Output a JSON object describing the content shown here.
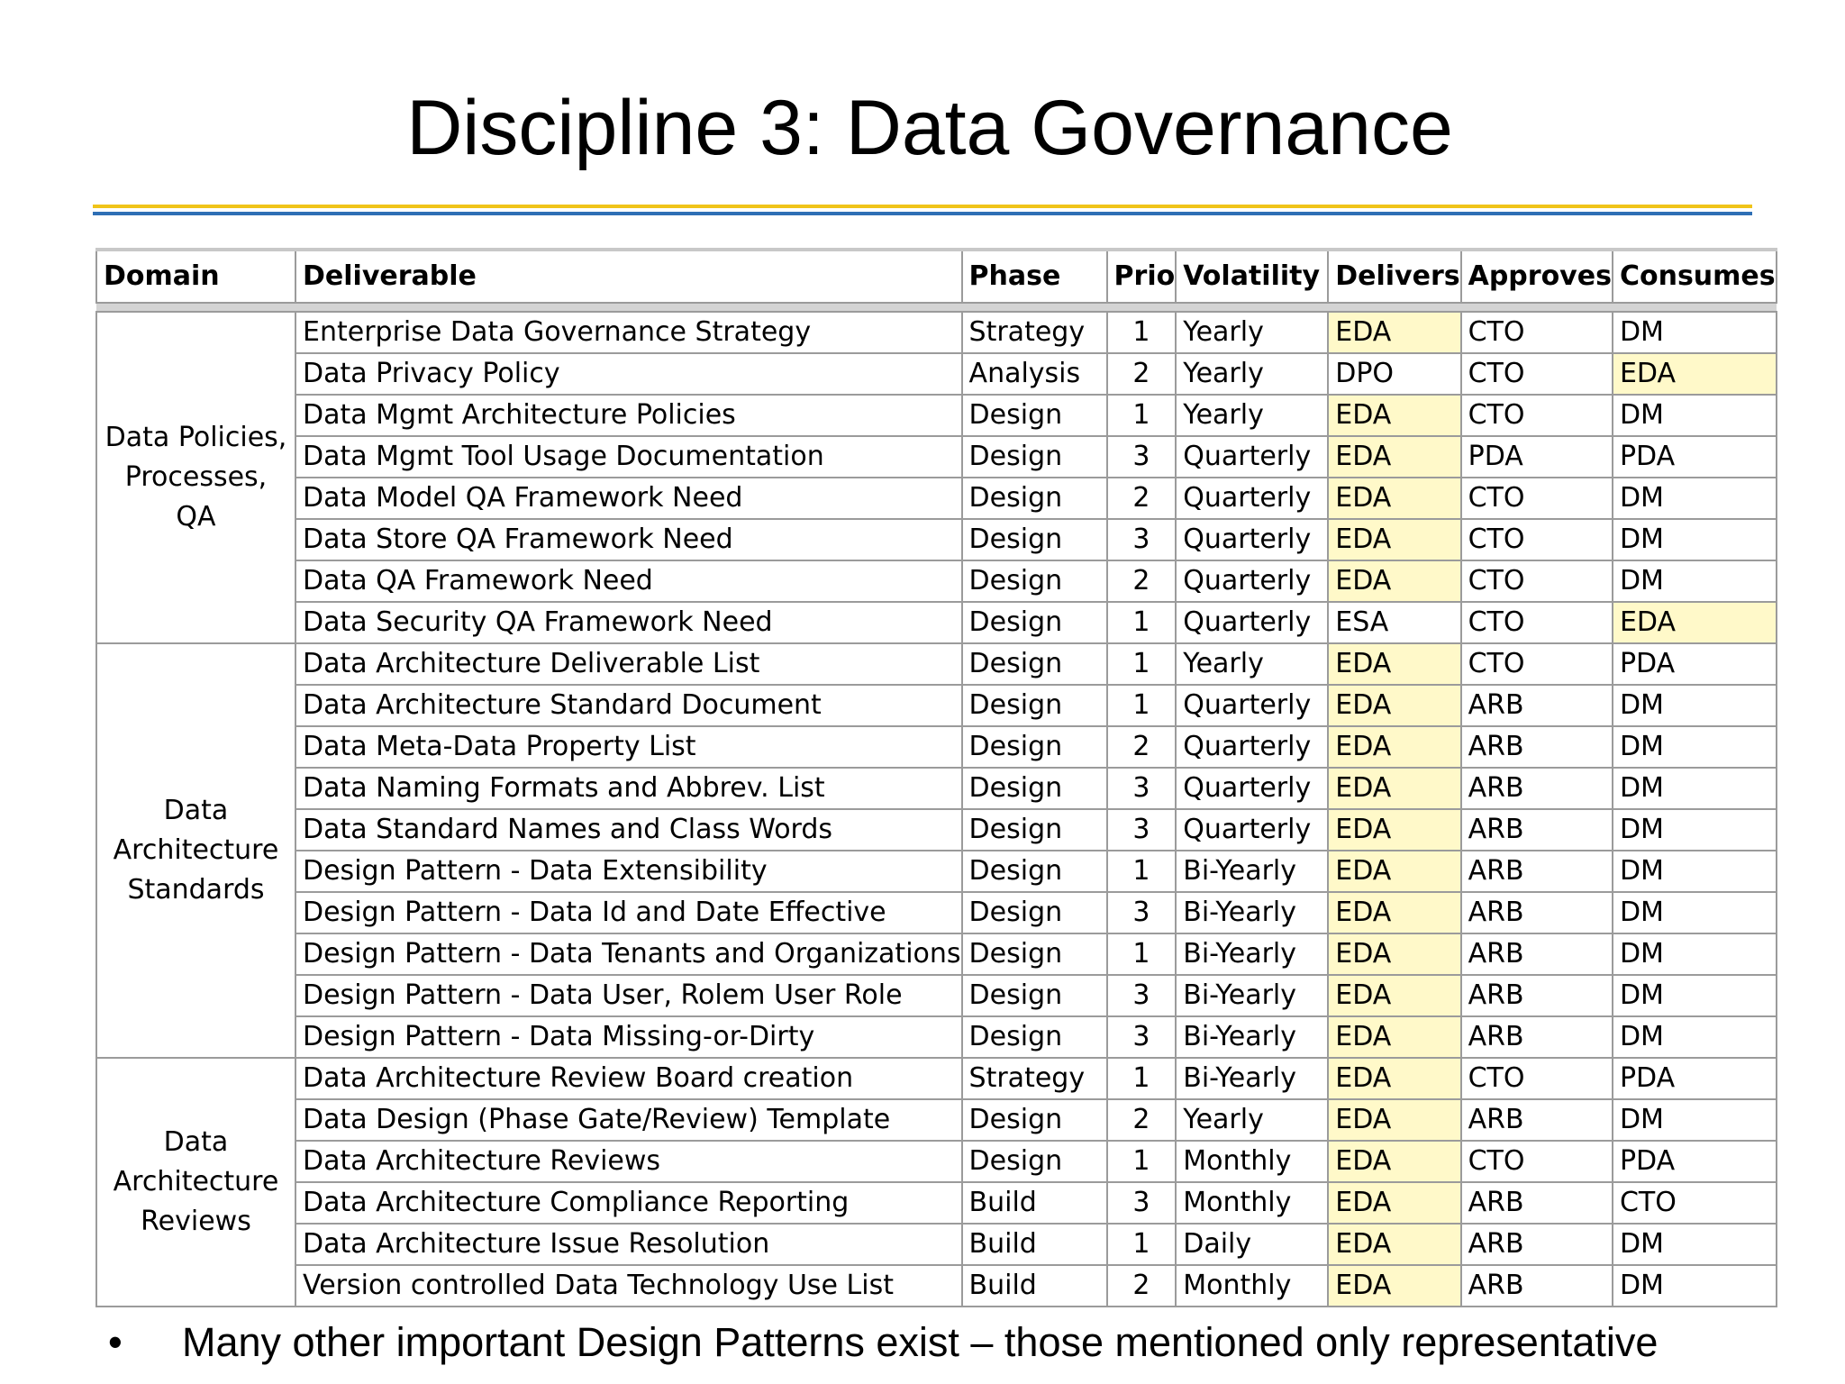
{
  "title": "Discipline 3: Data Governance",
  "colors": {
    "rule_top": "#f0c419",
    "rule_bottom": "#2e6fb5",
    "highlight": "#fff9c9"
  },
  "table": {
    "headers": [
      "Domain",
      "Deliverable",
      "Phase",
      "Prio",
      "Volatility",
      "Delivers",
      "Approves",
      "Consumes"
    ],
    "groups": [
      {
        "domain": "Data Policies, Processes, QA",
        "rows": [
          [
            "Enterprise Data Governance Strategy",
            "Strategy",
            "1",
            "Yearly",
            "EDA",
            "CTO",
            "DM"
          ],
          [
            "Data Privacy Policy",
            "Analysis",
            "2",
            "Yearly",
            "DPO",
            "CTO",
            "EDA"
          ],
          [
            "Data Mgmt Architecture Policies",
            "Design",
            "1",
            "Yearly",
            "EDA",
            "CTO",
            "DM"
          ],
          [
            "Data Mgmt Tool Usage Documentation",
            "Design",
            "3",
            "Quarterly",
            "EDA",
            "PDA",
            "PDA"
          ],
          [
            "Data Model QA Framework Need",
            "Design",
            "2",
            "Quarterly",
            "EDA",
            "CTO",
            "DM"
          ],
          [
            "Data Store QA Framework Need",
            "Design",
            "3",
            "Quarterly",
            "EDA",
            "CTO",
            "DM"
          ],
          [
            "Data QA Framework Need",
            "Design",
            "2",
            "Quarterly",
            "EDA",
            "CTO",
            "DM"
          ],
          [
            "Data Security QA Framework Need",
            "Design",
            "1",
            "Quarterly",
            "ESA",
            "CTO",
            "EDA"
          ]
        ]
      },
      {
        "domain": "Data Architecture Standards",
        "rows": [
          [
            "Data Architecture Deliverable List",
            "Design",
            "1",
            "Yearly",
            "EDA",
            "CTO",
            "PDA"
          ],
          [
            "Data Architecture Standard Document",
            "Design",
            "1",
            "Quarterly",
            "EDA",
            "ARB",
            "DM"
          ],
          [
            "Data Meta-Data Property List",
            "Design",
            "2",
            "Quarterly",
            "EDA",
            "ARB",
            "DM"
          ],
          [
            "Data Naming Formats and Abbrev. List",
            "Design",
            "3",
            "Quarterly",
            "EDA",
            "ARB",
            "DM"
          ],
          [
            "Data Standard Names and Class Words",
            "Design",
            "3",
            "Quarterly",
            "EDA",
            "ARB",
            "DM"
          ],
          [
            "Design Pattern - Data Extensibility",
            "Design",
            "1",
            "Bi-Yearly",
            "EDA",
            "ARB",
            "DM"
          ],
          [
            "Design Pattern - Data Id and Date Effective",
            "Design",
            "3",
            "Bi-Yearly",
            "EDA",
            "ARB",
            "DM"
          ],
          [
            "Design Pattern - Data Tenants and Organizations",
            "Design",
            "1",
            "Bi-Yearly",
            "EDA",
            "ARB",
            "DM"
          ],
          [
            "Design Pattern - Data User, Rolem User Role",
            "Design",
            "3",
            "Bi-Yearly",
            "EDA",
            "ARB",
            "DM"
          ],
          [
            "Design Pattern - Data Missing-or-Dirty",
            "Design",
            "3",
            "Bi-Yearly",
            "EDA",
            "ARB",
            "DM"
          ]
        ]
      },
      {
        "domain": "Data Architecture Reviews",
        "rows": [
          [
            "Data Architecture Review Board creation",
            "Strategy",
            "1",
            "Bi-Yearly",
            "EDA",
            "CTO",
            "PDA"
          ],
          [
            "Data Design (Phase Gate/Review) Template",
            "Design",
            "2",
            "Yearly",
            "EDA",
            "ARB",
            "DM"
          ],
          [
            "Data Architecture Reviews",
            "Design",
            "1",
            "Monthly",
            "EDA",
            "CTO",
            "PDA"
          ],
          [
            "Data Architecture Compliance Reporting",
            "Build",
            "3",
            "Monthly",
            "EDA",
            "ARB",
            "CTO"
          ],
          [
            "Data Architecture Issue Resolution",
            "Build",
            "1",
            "Daily",
            "EDA",
            "ARB",
            "DM"
          ],
          [
            "Version controlled Data Technology Use List",
            "Build",
            "2",
            "Monthly",
            "EDA",
            "ARB",
            "DM"
          ]
        ]
      }
    ]
  },
  "footnote": {
    "bullet": "•",
    "text": "Many other important Design Patterns exist – those mentioned only representative"
  }
}
